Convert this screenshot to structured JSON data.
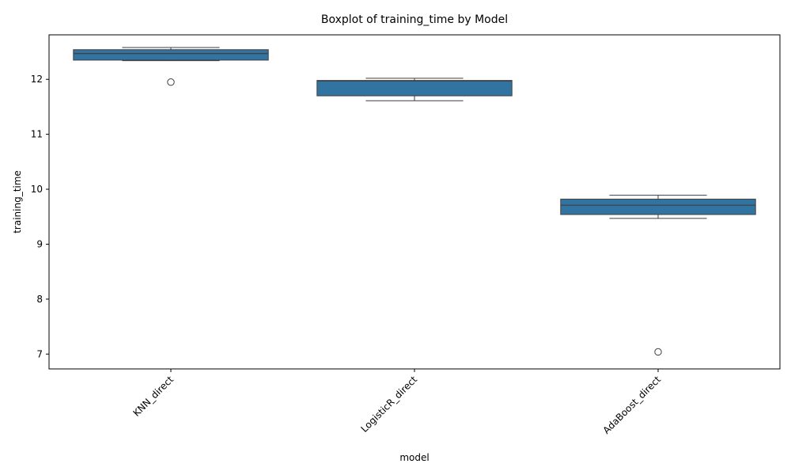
{
  "chart_data": {
    "type": "box",
    "title": "Boxplot of training_time by Model",
    "xlabel": "model",
    "ylabel": "training_time",
    "ylim": [
      6.73,
      12.81
    ],
    "yticks": [
      7,
      8,
      9,
      10,
      11,
      12
    ],
    "box_color": "#3274a1",
    "edge_color": "#3f3f3f",
    "categories": [
      "KNN_direct",
      "LogisticR_direct",
      "AdaBoost_direct"
    ],
    "boxes": [
      {
        "category": "KNN_direct",
        "whisker_low": 12.34,
        "q1": 12.35,
        "median": 12.47,
        "q3": 12.54,
        "whisker_high": 12.58,
        "outliers": [
          11.95
        ]
      },
      {
        "category": "LogisticR_direct",
        "whisker_low": 11.61,
        "q1": 11.7,
        "median": 11.97,
        "q3": 11.98,
        "whisker_high": 12.02,
        "outliers": []
      },
      {
        "category": "AdaBoost_direct",
        "whisker_low": 9.47,
        "q1": 9.54,
        "median": 9.71,
        "q3": 9.82,
        "whisker_high": 9.89,
        "outliers": [
          7.04
        ]
      }
    ]
  }
}
